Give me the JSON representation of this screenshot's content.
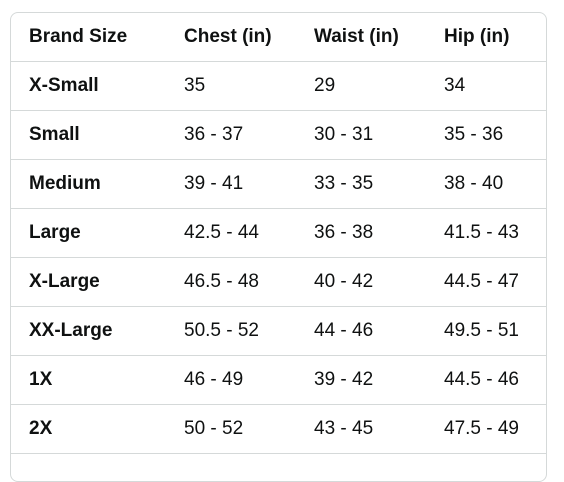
{
  "size_chart": {
    "headers": [
      "Brand Size",
      "Chest (in)",
      "Waist (in)",
      "Hip (in)"
    ],
    "rows": [
      [
        "X-Small",
        "35",
        "29",
        "34"
      ],
      [
        "Small",
        "36 - 37",
        "30 - 31",
        "35 - 36"
      ],
      [
        "Medium",
        "39 - 41",
        "33 - 35",
        "38 - 40"
      ],
      [
        "Large",
        "42.5 - 44",
        "36 - 38",
        "41.5 - 43"
      ],
      [
        "X-Large",
        "46.5 - 48",
        "40 - 42",
        "44.5 - 47"
      ],
      [
        "XX-Large",
        "50.5 - 52",
        "44 - 46",
        "49.5 - 51"
      ],
      [
        "1X",
        "46 - 49",
        "39 - 42",
        "44.5 - 46"
      ],
      [
        "2X",
        "50 - 52",
        "43 - 45",
        "47.5 - 49"
      ]
    ]
  }
}
